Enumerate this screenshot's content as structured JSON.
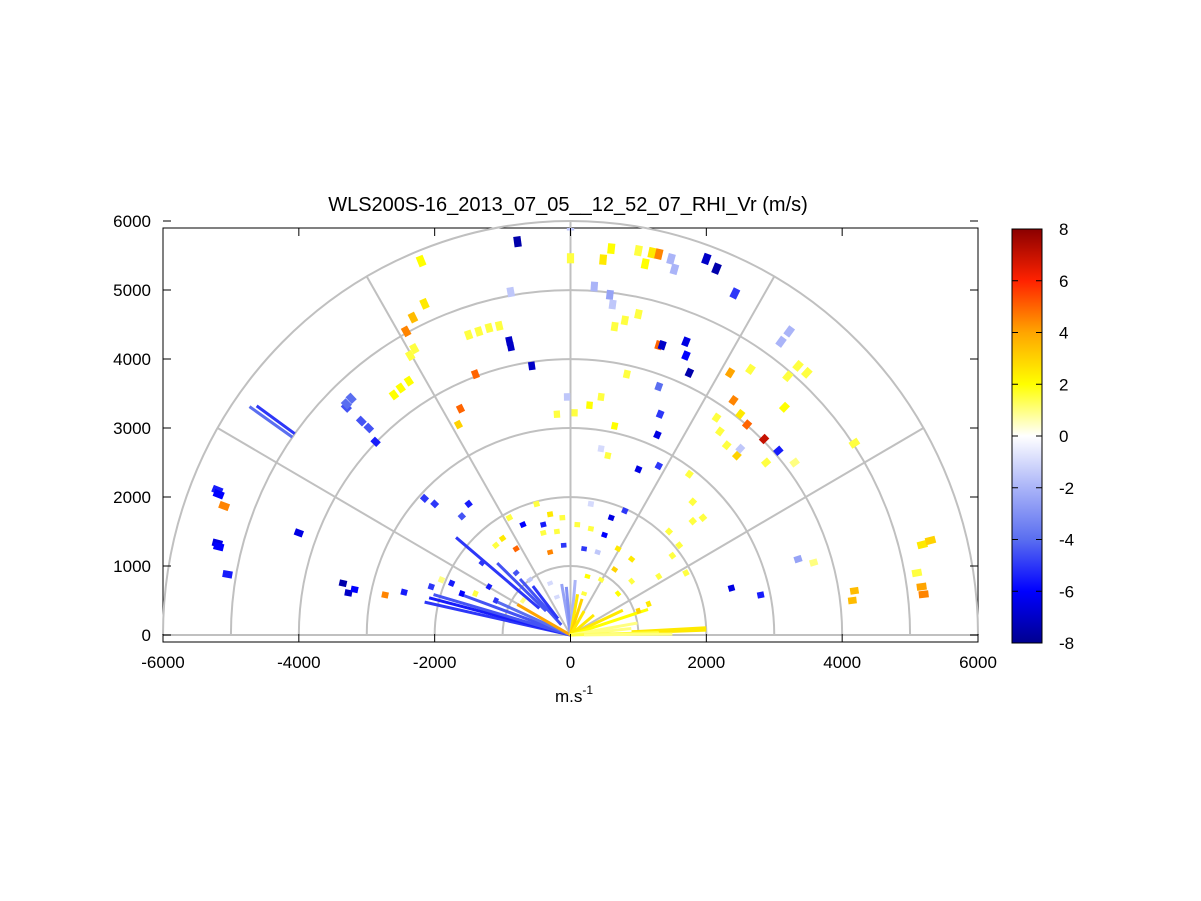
{
  "chart_data": {
    "type": "polar-rhi-scatter",
    "title": "WLS200S-16_2013_07_05__12_52_07_RHI_Vr (m/s)",
    "xlabel_base": "m.s",
    "xlabel_sup": "-1",
    "xlim": [
      -6000,
      6000
    ],
    "ylim": [
      0,
      6000
    ],
    "xticks": [
      -6000,
      -4000,
      -2000,
      0,
      2000,
      4000,
      6000
    ],
    "yticks": [
      0,
      1000,
      2000,
      3000,
      4000,
      5000,
      6000
    ],
    "range_rings": [
      1000,
      2000,
      3000,
      4000,
      5000,
      6000
    ],
    "spokes_deg": [
      0,
      30,
      60,
      90,
      120,
      150,
      180
    ],
    "colorbar": {
      "min": -8,
      "max": 8,
      "ticks": [
        -8,
        -6,
        -4,
        -2,
        0,
        2,
        4,
        6,
        8
      ],
      "stops": [
        "#00008f",
        "#0000ff",
        "#5a6ef0",
        "#aab4f8",
        "#ffffff",
        "#ffff00",
        "#ffa500",
        "#ff2200",
        "#8b0000"
      ]
    },
    "colors": {
      "grid": "#c0c0c0",
      "axis": "#000000",
      "background": "#ffffff"
    },
    "points": [
      [
        -5200,
        2100,
        -5.5
      ],
      [
        -5180,
        2040,
        -6.0
      ],
      [
        -5100,
        1870,
        4.5
      ],
      [
        -5200,
        1330,
        -6.5
      ],
      [
        -5180,
        1280,
        -6.0
      ],
      [
        -5050,
        880,
        -5.5
      ],
      [
        -4000,
        1480,
        -6.5
      ],
      [
        -3350,
        750,
        -7.5
      ],
      [
        -3270,
        610,
        -7.0
      ],
      [
        -3180,
        660,
        -6.0
      ],
      [
        -2730,
        580,
        4.5
      ],
      [
        -2450,
        620,
        -5.5
      ],
      [
        -2000,
        1900,
        -5.0
      ],
      [
        -1600,
        1720,
        -4.5
      ],
      [
        -1500,
        1900,
        -5.5
      ],
      [
        -2150,
        1980,
        -5.0
      ],
      [
        -3300,
        3300,
        -4.5
      ],
      [
        -3230,
        3430,
        -4.0
      ],
      [
        -3080,
        3100,
        -4.5
      ],
      [
        -2970,
        3000,
        -4.5
      ],
      [
        -2870,
        2800,
        -5.5
      ],
      [
        -3300,
        3350,
        -4.0
      ],
      [
        -2600,
        3480,
        2.0
      ],
      [
        -2500,
        3580,
        2.0
      ],
      [
        -2380,
        3680,
        2.0
      ],
      [
        -2360,
        4050,
        1.5
      ],
      [
        -2300,
        4150,
        1.5
      ],
      [
        -2420,
        4400,
        4.5
      ],
      [
        -2320,
        4600,
        3.5
      ],
      [
        -2150,
        4800,
        2.5
      ],
      [
        -2200,
        5420,
        2.0
      ],
      [
        -1500,
        4350,
        1.5
      ],
      [
        -1350,
        4400,
        1.5
      ],
      [
        -1200,
        4450,
        1.5
      ],
      [
        -1050,
        4480,
        1.5
      ],
      [
        -900,
        4260,
        -7.0
      ],
      [
        -880,
        4180,
        -7.0
      ],
      [
        -570,
        3900,
        -7.0
      ],
      [
        -1400,
        3780,
        5.0
      ],
      [
        -1620,
        3280,
        5.0
      ],
      [
        -1650,
        3050,
        3.0
      ],
      [
        -880,
        4970,
        -1.5
      ],
      [
        -780,
        5700,
        -7.5
      ],
      [
        0,
        5940,
        -1.5
      ],
      [
        0,
        5460,
        1.5
      ],
      [
        480,
        5440,
        2.5
      ],
      [
        580,
        4930,
        -2.5
      ],
      [
        350,
        5050,
        -2.0
      ],
      [
        620,
        4790,
        -1.5
      ],
      [
        650,
        4470,
        1.5
      ],
      [
        800,
        4560,
        1.5
      ],
      [
        1000,
        4650,
        1.5
      ],
      [
        600,
        5600,
        2.0
      ],
      [
        1000,
        5570,
        1.5
      ],
      [
        1200,
        5540,
        2.5
      ],
      [
        1300,
        5520,
        4.5
      ],
      [
        1100,
        5380,
        2.0
      ],
      [
        1480,
        5450,
        -2.0
      ],
      [
        1530,
        5300,
        -2.0
      ],
      [
        2000,
        5450,
        -7.0
      ],
      [
        2150,
        5310,
        -7.5
      ],
      [
        2420,
        4950,
        -5.0
      ],
      [
        -50,
        3450,
        -1.5
      ],
      [
        -200,
        3200,
        1.5
      ],
      [
        60,
        3220,
        1.5
      ],
      [
        280,
        3330,
        2.0
      ],
      [
        450,
        3450,
        1.5
      ],
      [
        830,
        3780,
        1.5
      ],
      [
        650,
        3030,
        2.0
      ],
      [
        1300,
        4200,
        5.0
      ],
      [
        1350,
        4200,
        -7.0
      ],
      [
        1700,
        4050,
        -6.0
      ],
      [
        1750,
        3800,
        -7.5
      ],
      [
        1700,
        4250,
        -6.5
      ],
      [
        1320,
        3200,
        -5.0
      ],
      [
        1280,
        2900,
        -6.5
      ],
      [
        1300,
        3600,
        -4.0
      ],
      [
        450,
        2700,
        -1.0
      ],
      [
        550,
        2600,
        1.5
      ],
      [
        1000,
        2400,
        -6.5
      ],
      [
        1300,
        2450,
        -5.0
      ],
      [
        1750,
        2330,
        1.5
      ],
      [
        2300,
        2750,
        1.5
      ],
      [
        2200,
        2950,
        1.5
      ],
      [
        2150,
        3150,
        1.5
      ],
      [
        2450,
        2600,
        3.0
      ],
      [
        2500,
        3200,
        2.5
      ],
      [
        2400,
        3400,
        4.5
      ],
      [
        2600,
        3050,
        5.0
      ],
      [
        2850,
        2840,
        7.0
      ],
      [
        3060,
        2670,
        -5.5
      ],
      [
        2880,
        2500,
        1.5
      ],
      [
        3300,
        2500,
        1.0
      ],
      [
        2650,
        3850,
        1.5
      ],
      [
        3150,
        3300,
        2.0
      ],
      [
        3200,
        3750,
        1.5
      ],
      [
        3350,
        3900,
        1.5
      ],
      [
        3480,
        3800,
        1.5
      ],
      [
        3100,
        4250,
        -2.0
      ],
      [
        3220,
        4400,
        -2.0
      ],
      [
        2500,
        2700,
        -1.5
      ],
      [
        2350,
        3800,
        4.0
      ],
      [
        4180,
        2780,
        1.5
      ],
      [
        5180,
        1310,
        2.5
      ],
      [
        5300,
        1370,
        3.0
      ],
      [
        5100,
        900,
        1.5
      ],
      [
        5170,
        700,
        4.0
      ],
      [
        5200,
        590,
        4.5
      ],
      [
        4180,
        640,
        3.5
      ],
      [
        4150,
        500,
        3.5
      ],
      [
        3580,
        1050,
        1.0
      ],
      [
        3350,
        1100,
        -2.5
      ],
      [
        2800,
        580,
        -5.5
      ],
      [
        2370,
        680,
        -6.5
      ],
      [
        1800,
        1930,
        1.5
      ],
      [
        1800,
        1650,
        1.5
      ],
      [
        1450,
        1500,
        1.5
      ],
      [
        1600,
        1300,
        1.5
      ],
      [
        1950,
        1700,
        1.5
      ],
      [
        -1100,
        1300,
        1.5
      ],
      [
        -1000,
        1400,
        2.5
      ],
      [
        -800,
        1250,
        5.0
      ],
      [
        -400,
        1480,
        1.5
      ],
      [
        -200,
        1500,
        1.5
      ],
      [
        100,
        1600,
        1.5
      ],
      [
        300,
        1540,
        1.5
      ],
      [
        -120,
        1700,
        1.5
      ],
      [
        500,
        1450,
        -6.0
      ],
      [
        700,
        1250,
        2.5
      ],
      [
        900,
        1100,
        2.5
      ],
      [
        650,
        950,
        3.0
      ],
      [
        -300,
        1200,
        4.5
      ],
      [
        -100,
        1300,
        -5.0
      ],
      [
        200,
        1250,
        -5.0
      ],
      [
        400,
        1200,
        -1.5
      ],
      [
        300,
        1900,
        -1.0
      ],
      [
        -500,
        1900,
        1.5
      ],
      [
        -300,
        1750,
        2.5
      ],
      [
        -400,
        1600,
        -5.5
      ],
      [
        -700,
        1600,
        -6.0
      ],
      [
        600,
        1700,
        -6.5
      ],
      [
        800,
        1800,
        -5.0
      ],
      [
        -900,
        1700,
        1.5
      ],
      [
        -1300,
        1050,
        -5.0
      ],
      [
        -600,
        800,
        -1.5
      ],
      [
        -300,
        750,
        -1.0
      ],
      [
        450,
        800,
        1.5
      ],
      [
        250,
        850,
        2.0
      ],
      [
        -800,
        900,
        -4.5
      ],
      [
        -1200,
        700,
        -5.5
      ],
      [
        -1400,
        600,
        1.5
      ],
      [
        -1100,
        500,
        -5.0
      ],
      [
        -700,
        500,
        1.0
      ],
      [
        -200,
        550,
        -1.0
      ],
      [
        200,
        600,
        1.5
      ],
      [
        700,
        600,
        2.0
      ],
      [
        1000,
        350,
        3.0
      ],
      [
        1150,
        450,
        2.5
      ],
      [
        -1600,
        600,
        -6.0
      ],
      [
        -1750,
        750,
        -5.5
      ],
      [
        900,
        780,
        1.5
      ],
      [
        1300,
        850,
        1.5
      ],
      [
        -2050,
        700,
        -5.0
      ],
      [
        -1900,
        800,
        1.0
      ],
      [
        1700,
        900,
        1.5
      ],
      [
        1500,
        1150,
        1.5
      ]
    ],
    "rays": [
      {
        "az": 167.5,
        "r0": 0,
        "r1": 2200,
        "v": -5.0
      },
      {
        "az": 165.5,
        "r0": 0,
        "r1": 2150,
        "v": -5.5
      },
      {
        "az": 163.8,
        "r0": 0,
        "r1": 2100,
        "v": -4.5
      },
      {
        "az": 160.0,
        "r0": 0,
        "r1": 1700,
        "v": -4.5
      },
      {
        "az": 156.0,
        "r0": 0,
        "r1": 1200,
        "v": -4.0
      },
      {
        "az": 150.5,
        "r0": 0,
        "r1": 900,
        "v": 4.0
      },
      {
        "az": 140.0,
        "r0": 600,
        "r1": 2200,
        "v": -5.0
      },
      {
        "az": 136.0,
        "r0": 500,
        "r1": 1500,
        "v": -4.5
      },
      {
        "az": 132.5,
        "r0": 200,
        "r1": 1100,
        "v": -4.5
      },
      {
        "az": 128.0,
        "r0": 300,
        "r1": 900,
        "v": -5.0
      },
      {
        "az": 145.0,
        "r0": 5000,
        "r1": 5770,
        "v": -4.0
      },
      {
        "az": 144.3,
        "r0": 5000,
        "r1": 5690,
        "v": -5.0
      },
      {
        "az": 100.0,
        "r0": 0,
        "r1": 750,
        "v": -2.5
      },
      {
        "az": 95.0,
        "r0": 0,
        "r1": 700,
        "v": -3.0
      },
      {
        "az": 85.0,
        "r0": 0,
        "r1": 800,
        "v": -2.0
      },
      {
        "az": 80.0,
        "r0": 0,
        "r1": 600,
        "v": 2.5
      },
      {
        "az": 72.0,
        "r0": 0,
        "r1": 550,
        "v": 3.0
      },
      {
        "az": 60.0,
        "r0": 0,
        "r1": 400,
        "v": 2.5
      },
      {
        "az": 40.0,
        "r0": 0,
        "r1": 450,
        "v": 2.5
      },
      {
        "az": 25.0,
        "r0": 0,
        "r1": 850,
        "v": 2.5
      },
      {
        "az": 18.0,
        "r0": 0,
        "r1": 1200,
        "v": 2.0
      },
      {
        "az": 10.0,
        "r0": 0,
        "r1": 1000,
        "v": 1.0
      },
      {
        "az": 6.0,
        "r0": 0,
        "r1": 900,
        "v": 1.0
      },
      {
        "az": 3.0,
        "r0": 900,
        "r1": 2000,
        "v": 2.5
      },
      {
        "az": 1.5,
        "r0": 0,
        "r1": 1300,
        "v": 1.5
      },
      {
        "az": 2.0,
        "r0": 1300,
        "r1": 2000,
        "v": 2.5
      },
      {
        "az": 0.5,
        "r0": 200,
        "r1": 1500,
        "v": 1.0
      }
    ]
  }
}
